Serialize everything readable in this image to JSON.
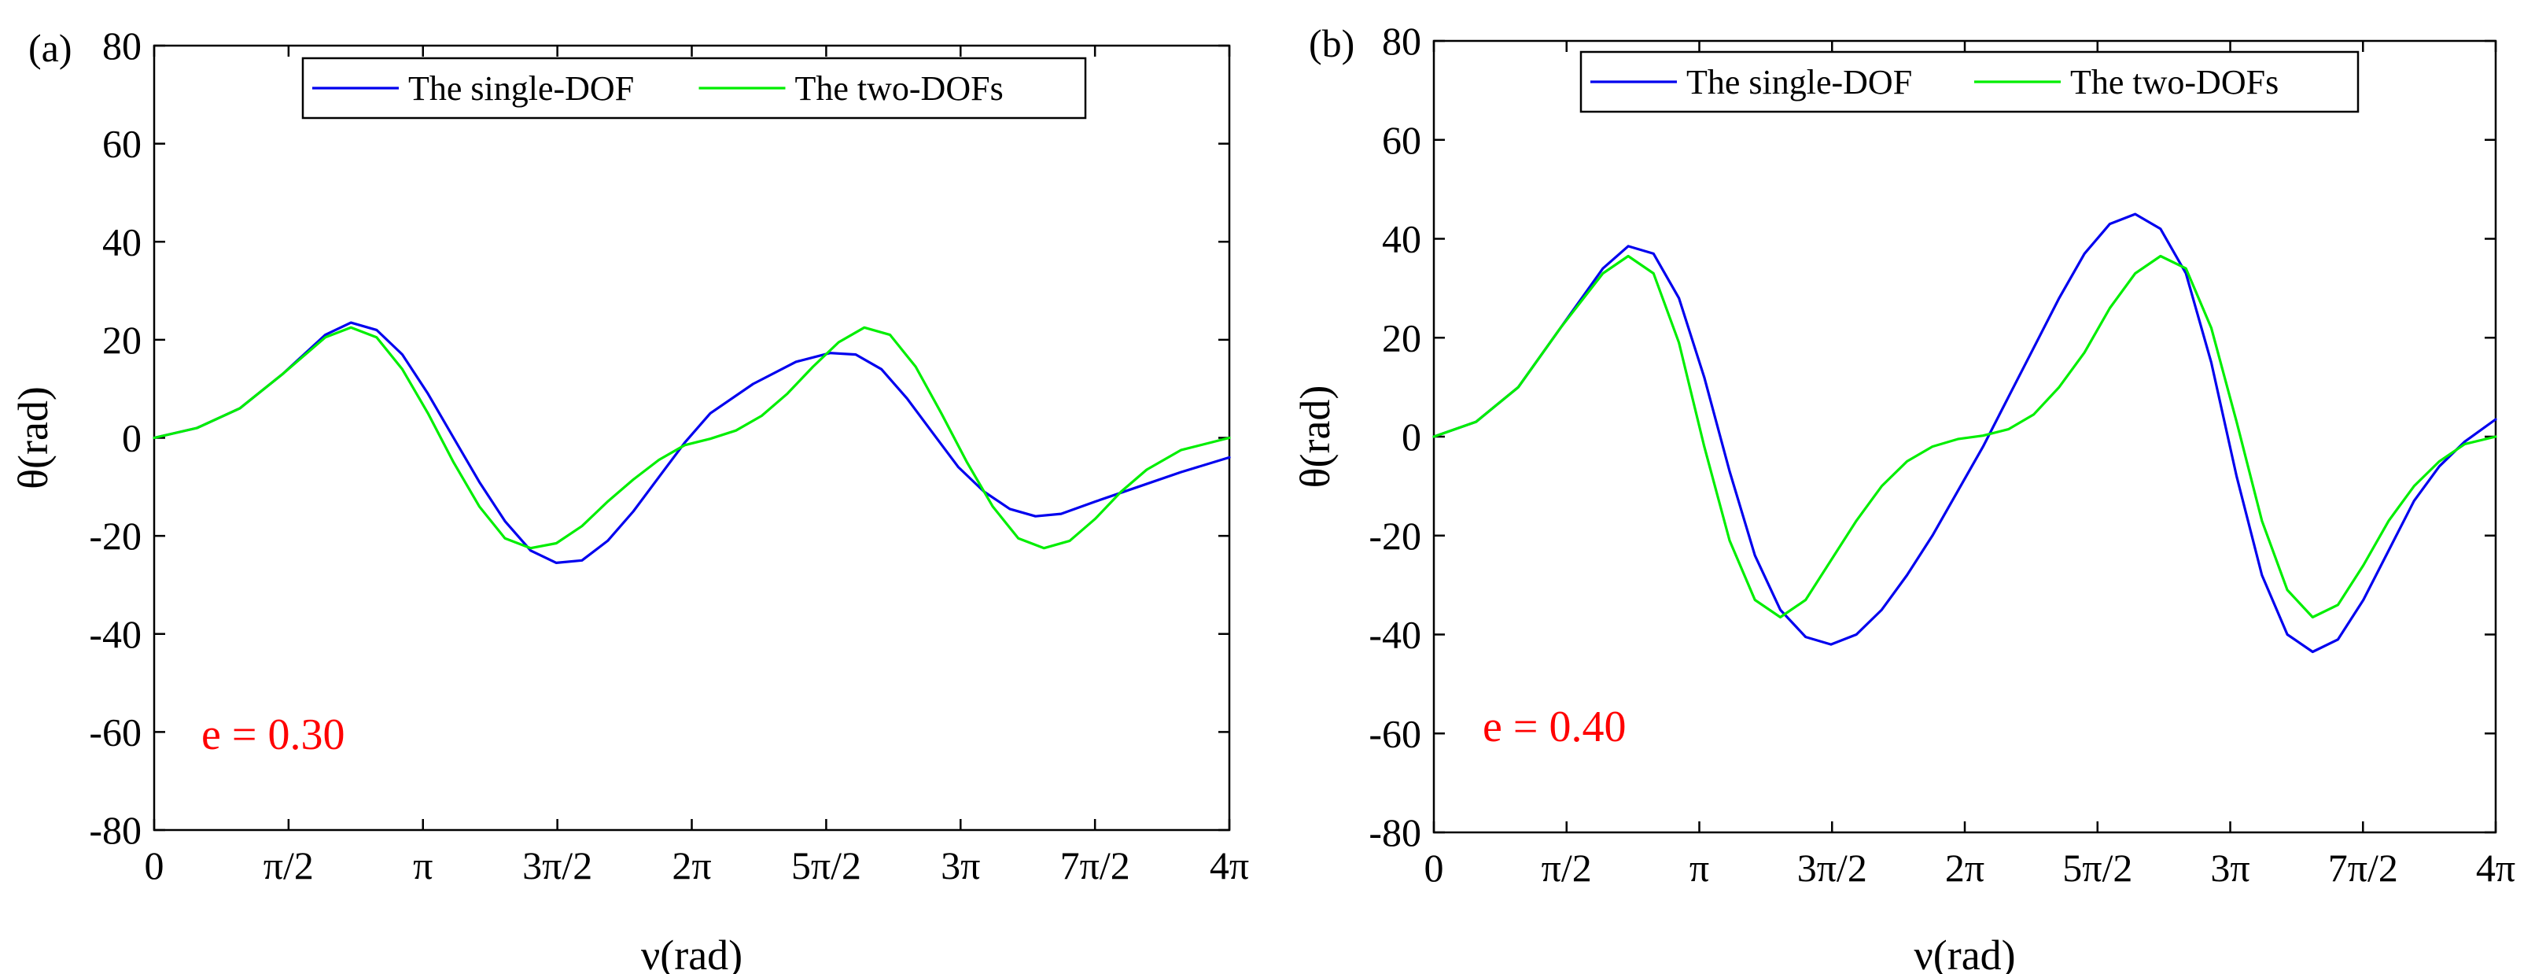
{
  "chart_data": [
    {
      "type": "line",
      "panel_label": "(a)",
      "xlabel": "ν(rad)",
      "ylabel": "θ(rad)",
      "xlim": [
        0,
        12.566
      ],
      "ylim": [
        -80,
        80
      ],
      "yticks": [
        -80,
        -60,
        -40,
        -20,
        0,
        20,
        40,
        60,
        80
      ],
      "xticks": [
        0,
        1.5708,
        3.1416,
        4.7124,
        6.2832,
        7.854,
        9.4248,
        10.9956,
        12.5664
      ],
      "xtick_labels": [
        "0",
        "π/2",
        "π",
        "3π/2",
        "2π",
        "5π/2",
        "3π",
        "7π/2",
        "4π"
      ],
      "annotation": "e = 0.30",
      "annotation_color": "#ff0000",
      "legend_position": "top-center",
      "series": [
        {
          "name": "The single-DOF",
          "color": "#0000ee",
          "x": [
            0,
            0.5,
            1.0,
            1.5,
            2.0,
            2.3,
            2.6,
            2.9,
            3.2,
            3.5,
            3.8,
            4.1,
            4.4,
            4.7,
            5.0,
            5.3,
            5.6,
            5.9,
            6.2,
            6.5,
            7.0,
            7.5,
            7.9,
            8.2,
            8.5,
            8.8,
            9.1,
            9.4,
            9.7,
            10.0,
            10.3,
            10.6,
            11.0,
            11.5,
            12.0,
            12.566
          ],
          "values": [
            0,
            2,
            6,
            13,
            21,
            23.5,
            22,
            17,
            9,
            0,
            -9,
            -17,
            -23,
            -25.5,
            -25,
            -21,
            -15,
            -8,
            -1,
            5,
            11,
            15.5,
            17.3,
            17,
            14,
            8,
            1,
            -6,
            -11,
            -14.5,
            -16,
            -15.5,
            -13,
            -10,
            -7,
            -4
          ]
        },
        {
          "name": "The two-DOFs",
          "color": "#00ee00",
          "x": [
            0,
            0.5,
            1.0,
            1.5,
            2.0,
            2.3,
            2.6,
            2.9,
            3.2,
            3.5,
            3.8,
            4.1,
            4.4,
            4.7,
            5.0,
            5.3,
            5.6,
            5.9,
            6.2,
            6.5,
            6.8,
            7.1,
            7.4,
            7.7,
            8.0,
            8.3,
            8.6,
            8.9,
            9.2,
            9.5,
            9.8,
            10.1,
            10.4,
            10.7,
            11.0,
            11.3,
            11.6,
            12.0,
            12.566
          ],
          "values": [
            0,
            2,
            6,
            13,
            20.5,
            22.5,
            20.5,
            14,
            5,
            -5,
            -14,
            -20.5,
            -22.5,
            -21.5,
            -18,
            -13,
            -8.5,
            -4.5,
            -1.5,
            -0.2,
            1.5,
            4.5,
            9,
            14.5,
            19.5,
            22.5,
            21,
            14.5,
            5,
            -5,
            -14,
            -20.5,
            -22.5,
            -21,
            -16.5,
            -11,
            -6.5,
            -2.5,
            0
          ]
        }
      ]
    },
    {
      "type": "line",
      "panel_label": "(b)",
      "xlabel": "ν(rad)",
      "ylabel": "θ(rad)",
      "xlim": [
        0,
        12.566
      ],
      "ylim": [
        -80,
        80
      ],
      "yticks": [
        -80,
        -60,
        -40,
        -20,
        0,
        20,
        40,
        60,
        80
      ],
      "xticks": [
        0,
        1.5708,
        3.1416,
        4.7124,
        6.2832,
        7.854,
        9.4248,
        10.9956,
        12.5664
      ],
      "xtick_labels": [
        "0",
        "π/2",
        "π",
        "3π/2",
        "2π",
        "5π/2",
        "3π",
        "7π/2",
        "4π"
      ],
      "annotation": "e = 0.40",
      "annotation_color": "#ff0000",
      "legend_position": "top-center",
      "series": [
        {
          "name": "The single-DOF",
          "color": "#0000ee",
          "x": [
            0,
            0.5,
            1.0,
            1.5,
            2.0,
            2.3,
            2.6,
            2.9,
            3.2,
            3.5,
            3.8,
            4.1,
            4.4,
            4.7,
            5.0,
            5.3,
            5.6,
            5.9,
            6.2,
            6.5,
            6.8,
            7.1,
            7.4,
            7.7,
            8.0,
            8.3,
            8.6,
            8.9,
            9.2,
            9.5,
            9.8,
            10.1,
            10.4,
            10.7,
            11.0,
            11.3,
            11.6,
            11.9,
            12.2,
            12.566
          ],
          "values": [
            0,
            3,
            10,
            22,
            34,
            38.5,
            37,
            28,
            12,
            -7,
            -24,
            -35,
            -40.5,
            -42,
            -40,
            -35,
            -28,
            -20,
            -11,
            -2,
            8,
            18,
            28,
            37,
            43,
            45,
            42,
            33,
            15,
            -8,
            -28,
            -40,
            -43.5,
            -41,
            -33,
            -23,
            -13,
            -6,
            -1,
            3.5
          ]
        },
        {
          "name": "The two-DOFs",
          "color": "#00ee00",
          "x": [
            0,
            0.5,
            1.0,
            1.5,
            2.0,
            2.3,
            2.6,
            2.9,
            3.2,
            3.5,
            3.8,
            4.1,
            4.4,
            4.7,
            5.0,
            5.3,
            5.6,
            5.9,
            6.2,
            6.5,
            6.8,
            7.1,
            7.4,
            7.7,
            8.0,
            8.3,
            8.6,
            8.9,
            9.2,
            9.5,
            9.8,
            10.1,
            10.4,
            10.7,
            11.0,
            11.3,
            11.6,
            11.9,
            12.2,
            12.566
          ],
          "values": [
            0,
            3,
            10,
            22,
            33,
            36.5,
            33,
            19,
            -2,
            -21,
            -33,
            -36.5,
            -33,
            -25,
            -17,
            -10,
            -5,
            -2,
            -0.5,
            0.2,
            1.5,
            4.5,
            10,
            17,
            26,
            33,
            36.5,
            34,
            22,
            3,
            -17,
            -31,
            -36.5,
            -34,
            -26,
            -17,
            -10,
            -5,
            -1.5,
            0
          ]
        }
      ]
    }
  ]
}
